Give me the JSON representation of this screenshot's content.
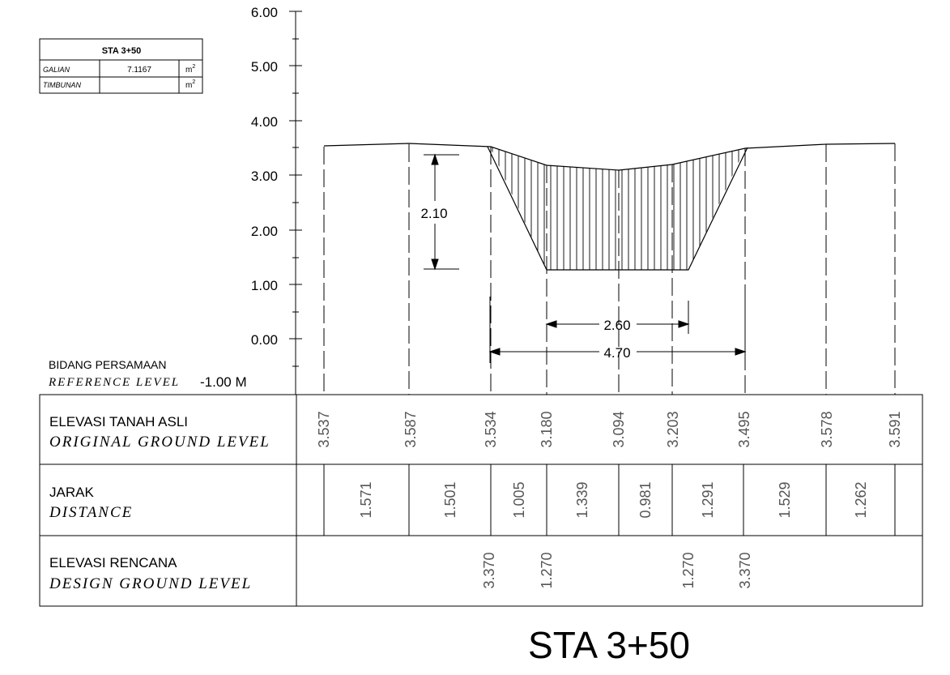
{
  "summary_table": {
    "title": "STA 3+50",
    "rows": [
      {
        "label": "GALIAN",
        "value": "7.1167",
        "unit": "m",
        "unit_sup": "2"
      },
      {
        "label": "TIMBUNAN",
        "value": "",
        "unit": "m",
        "unit_sup": "2"
      }
    ]
  },
  "y_axis": {
    "ticks": [
      "6.00",
      "5.00",
      "4.00",
      "3.00",
      "2.00",
      "1.00",
      "0.00"
    ]
  },
  "reference_level": {
    "label_id": "BIDANG PERSAMAAN",
    "label_en": "REFERENCE LEVEL",
    "value": "-1.00 M"
  },
  "dimensions": {
    "depth": "2.10",
    "bottom_width": "2.60",
    "top_width": "4.70"
  },
  "rows": {
    "ground": {
      "label_id": "ELEVASI TANAH ASLI",
      "label_en": "ORIGINAL GROUND LEVEL"
    },
    "distance": {
      "label_id": "JARAK",
      "label_en": "DISTANCE"
    },
    "design": {
      "label_id": "ELEVASI RENCANA",
      "label_en": "DESIGN GROUND LEVEL"
    }
  },
  "ground_levels": [
    "3.537",
    "3.587",
    "3.534",
    "3.180",
    "3.094",
    "3.203",
    "3.495",
    "3.578",
    "3.591"
  ],
  "distances": [
    "1.571",
    "1.501",
    "1.005",
    "1.339",
    "0.981",
    "1.291",
    "1.529",
    "1.262"
  ],
  "design_levels": [
    "3.370",
    "1.270",
    "1.270",
    "3.370"
  ],
  "footer_title": "STA 3+50"
}
